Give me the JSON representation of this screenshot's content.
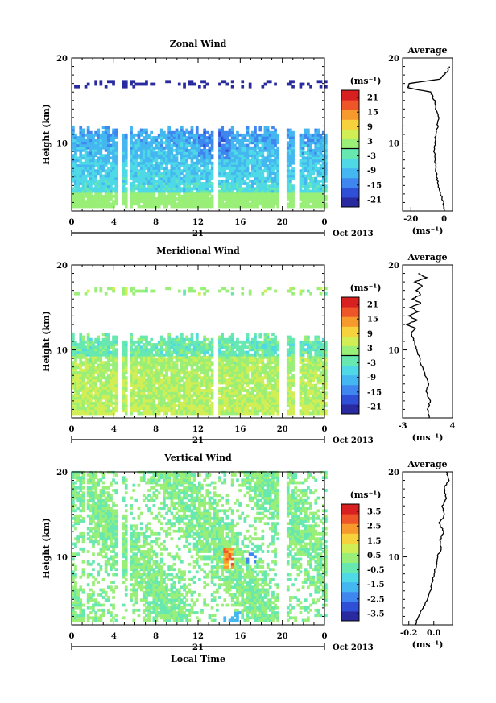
{
  "x_axis": {
    "ticks": [
      "0",
      "4",
      "8",
      "12",
      "16",
      "20",
      "0"
    ],
    "day_label": "21",
    "month_label": "Oct 2013",
    "xlabel": "Local Time"
  },
  "colorbar_unit": "(ms⁻¹)",
  "colormap": [
    "#2a2aa0",
    "#2f4fd6",
    "#3f86ef",
    "#44b6f0",
    "#4fd9e6",
    "#66e8b0",
    "#99ef77",
    "#d2ee55",
    "#f6d23c",
    "#f79a2e",
    "#ee5528",
    "#d82020"
  ],
  "chart_data": [
    {
      "type": "heatmap",
      "title": "Zonal Wind",
      "ylabel": "Height (km)",
      "xlim": [
        0,
        24
      ],
      "ylim": [
        2,
        20
      ],
      "yticks": [
        "10",
        "20"
      ],
      "xticks": [
        "0",
        "4",
        "8",
        "12",
        "16",
        "20",
        "0"
      ],
      "colorbar": {
        "ticks": [
          "21",
          "15",
          "9",
          "3",
          "-3",
          "-9",
          "-15",
          "-21"
        ],
        "range": [
          -24,
          24
        ],
        "unit": "(ms⁻¹)"
      },
      "field": {
        "kind": "zonal",
        "top_km": 12,
        "tropo_band_km": [
          16.5,
          17.4
        ],
        "gaps_h": [
          [
            4.3,
            4.9
          ],
          [
            5.3,
            5.6
          ],
          [
            13.5,
            14.0
          ],
          [
            19.7,
            20.3
          ],
          [
            21.0,
            21.6
          ]
        ]
      },
      "average": {
        "title": "Average",
        "xlabel": "(ms⁻¹)",
        "xlim": [
          -25,
          5
        ],
        "xticks": [
          "-20",
          "0"
        ],
        "ylim": [
          2,
          20
        ],
        "yticks": [
          "10",
          "20"
        ],
        "height_km": [
          2,
          3,
          4,
          5,
          6,
          7,
          8,
          9,
          10,
          11,
          12,
          13,
          14,
          15,
          15.5,
          16,
          16.5,
          17,
          17.5,
          18,
          18.5,
          19
        ],
        "value": [
          0.5,
          -0.5,
          -2,
          -3.5,
          -4.5,
          -5,
          -5.5,
          -6,
          -5.5,
          -5,
          -4,
          -3.5,
          -5,
          -6,
          -7,
          -8,
          -22,
          -21,
          -3,
          0,
          2,
          3
        ]
      }
    },
    {
      "type": "heatmap",
      "title": "Meridional Wind",
      "ylabel": "Height (km)",
      "xlim": [
        0,
        24
      ],
      "ylim": [
        2,
        20
      ],
      "yticks": [
        "10",
        "20"
      ],
      "xticks": [
        "0",
        "4",
        "8",
        "12",
        "16",
        "20",
        "0"
      ],
      "colorbar": {
        "ticks": [
          "21",
          "15",
          "9",
          "3",
          "-3",
          "-9",
          "-15",
          "-21"
        ],
        "range": [
          -24,
          24
        ],
        "unit": "(ms⁻¹)"
      },
      "field": {
        "kind": "meridional",
        "top_km": 12,
        "tropo_band_km": [
          16.5,
          17.4
        ],
        "gaps_h": [
          [
            4.3,
            4.9
          ],
          [
            5.3,
            5.6
          ],
          [
            13.5,
            14.0
          ],
          [
            19.7,
            20.3
          ],
          [
            21.0,
            21.6
          ]
        ]
      },
      "average": {
        "title": "Average",
        "xlabel": "(ms⁻¹)",
        "xlim": [
          -3,
          4
        ],
        "xticks": [
          "-3",
          "4"
        ],
        "ylim": [
          2,
          20
        ],
        "yticks": [
          "10",
          "20"
        ],
        "height_km": [
          2,
          3,
          4,
          5,
          6,
          7,
          8,
          9,
          10,
          11,
          12,
          12.5,
          13,
          13.5,
          14,
          14.5,
          15,
          15.5,
          16,
          16.5,
          17,
          17.5,
          18,
          18.5,
          19
        ],
        "value": [
          0.8,
          0.5,
          0.9,
          0.3,
          0.6,
          0.2,
          -0.3,
          -0.6,
          -1,
          -1.4,
          -1.8,
          -1.2,
          -2.4,
          -1.0,
          -2.2,
          -0.8,
          -1.9,
          -0.4,
          -1.6,
          -0.5,
          -1.0,
          -0.2,
          -1.3,
          0.3,
          -0.8
        ]
      }
    },
    {
      "type": "heatmap",
      "title": "Vertical Wind",
      "ylabel": "Height (km)",
      "xlim": [
        0,
        24
      ],
      "ylim": [
        2,
        20
      ],
      "yticks": [
        "10",
        "20"
      ],
      "xticks": [
        "0",
        "4",
        "8",
        "12",
        "16",
        "20",
        "0"
      ],
      "colorbar": {
        "ticks": [
          "3.5",
          "2.5",
          "1.5",
          "0.5",
          "-0.5",
          "-1.5",
          "-2.5",
          "-3.5"
        ],
        "range": [
          -4,
          4
        ],
        "unit": "(ms⁻¹)"
      },
      "field": {
        "kind": "vertical",
        "top_km": 20,
        "gaps_h": [
          [
            1.2,
            1.5
          ],
          [
            4.3,
            4.9
          ],
          [
            5.3,
            5.6
          ],
          [
            19.7,
            20.3
          ]
        ]
      },
      "average": {
        "title": "Average",
        "xlabel": "(ms⁻¹)",
        "xlim": [
          -0.25,
          0.15
        ],
        "xticks": [
          "-0.2",
          "0.0"
        ],
        "ylim": [
          2,
          20
        ],
        "yticks": [
          "10",
          "20"
        ],
        "height_km": [
          2,
          3,
          4,
          5,
          6,
          7,
          8,
          9,
          10,
          11,
          12,
          13,
          14,
          15,
          16,
          17,
          18,
          19,
          20
        ],
        "value": [
          -0.15,
          -0.12,
          -0.09,
          -0.05,
          -0.03,
          -0.01,
          0.0,
          0.02,
          0.03,
          0.06,
          0.05,
          0.08,
          0.04,
          0.09,
          0.07,
          0.1,
          0.08,
          0.12,
          0.1
        ]
      }
    }
  ]
}
